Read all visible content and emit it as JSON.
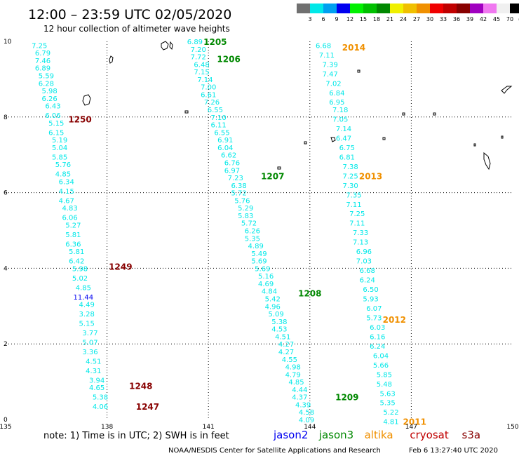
{
  "header": {
    "title": "12:00 – 23:59 UTC 02/05/2020",
    "subtitle": "12 hour collection of altimeter wave heights"
  },
  "colorbar": {
    "unit": "(ft)",
    "colors": [
      "#707070",
      "#00e8e8",
      "#00a0f0",
      "#0000f0",
      "#00f000",
      "#00c000",
      "#008800",
      "#f0f000",
      "#f0c000",
      "#f09000",
      "#f00000",
      "#c00000",
      "#880000",
      "#a000c0",
      "#f078f0",
      "#f0f0f0",
      "#000000"
    ],
    "labels": [
      "3",
      "6",
      "9",
      "12",
      "15",
      "18",
      "21",
      "24",
      "27",
      "30",
      "33",
      "36",
      "39",
      "42",
      "45",
      "70"
    ]
  },
  "footer": {
    "note": "note:  1) Time is in UTC;  2) SWH is in feet",
    "legend": [
      {
        "name": "jason2",
        "color": "#0000f0"
      },
      {
        "name": "jason3",
        "color": "#008800"
      },
      {
        "name": "altika",
        "color": "#f09000"
      },
      {
        "name": "cryosat",
        "color": "#c00000"
      },
      {
        "name": "s3a",
        "color": "#880000"
      }
    ],
    "credit": "NOAA/NESDIS Center for Satellite Applications and Research",
    "timestamp": "Feb  6 13:27:40 UTC 2020"
  },
  "chart_data": {
    "type": "scatter",
    "title": "12:00 – 23:59 UTC 02/05/2020",
    "subtitle": "12 hour collection of altimeter wave heights",
    "xlim": [
      135,
      150
    ],
    "ylim": [
      0,
      10
    ],
    "x_ticks": [
      "135",
      "138",
      "141",
      "144",
      "147",
      "150"
    ],
    "y_ticks": [
      "0",
      "2",
      "4",
      "6",
      "8",
      "10"
    ],
    "grid": true,
    "unit": "ft",
    "tracks": [
      {
        "satellite": "cryosat",
        "color": "#00e8e8",
        "points": [
          {
            "lon": 136.0,
            "lat": 9.9,
            "v": "7.25"
          },
          {
            "lon": 136.1,
            "lat": 9.7,
            "v": "6.79"
          },
          {
            "lon": 136.1,
            "lat": 9.5,
            "v": "7.46"
          },
          {
            "lon": 136.1,
            "lat": 9.3,
            "v": "6.89"
          },
          {
            "lon": 136.2,
            "lat": 9.1,
            "v": "5.59"
          },
          {
            "lon": 136.2,
            "lat": 8.9,
            "v": "6.28"
          },
          {
            "lon": 136.3,
            "lat": 8.7,
            "v": "5.98"
          },
          {
            "lon": 136.3,
            "lat": 8.5,
            "v": "6.26"
          },
          {
            "lon": 136.4,
            "lat": 8.3,
            "v": "6.43"
          },
          {
            "lon": 136.4,
            "lat": 8.05,
            "v": "6.06"
          },
          {
            "lon": 136.5,
            "lat": 7.85,
            "v": "5.15"
          },
          {
            "lon": 136.5,
            "lat": 7.6,
            "v": "6.15"
          },
          {
            "lon": 136.6,
            "lat": 7.4,
            "v": "5.19"
          },
          {
            "lon": 136.6,
            "lat": 7.2,
            "v": "5.04"
          },
          {
            "lon": 136.6,
            "lat": 6.95,
            "v": "5.85"
          },
          {
            "lon": 136.7,
            "lat": 6.75,
            "v": "5.76"
          },
          {
            "lon": 136.7,
            "lat": 6.5,
            "v": "4.85"
          },
          {
            "lon": 136.8,
            "lat": 6.3,
            "v": "6.34"
          },
          {
            "lon": 136.8,
            "lat": 6.05,
            "v": "4.15"
          },
          {
            "lon": 136.8,
            "lat": 5.8,
            "v": "4.67"
          },
          {
            "lon": 136.9,
            "lat": 5.6,
            "v": "4.83"
          },
          {
            "lon": 136.9,
            "lat": 5.35,
            "v": "6.06"
          },
          {
            "lon": 137.0,
            "lat": 5.15,
            "v": "5.27"
          },
          {
            "lon": 137.0,
            "lat": 4.9,
            "v": "5.81"
          },
          {
            "lon": 137.0,
            "lat": 4.65,
            "v": "6.36"
          },
          {
            "lon": 137.1,
            "lat": 4.45,
            "v": "5.81"
          },
          {
            "lon": 137.1,
            "lat": 4.2,
            "v": "6.42"
          },
          {
            "lon": 137.2,
            "lat": 4.0,
            "v": "5.98"
          },
          {
            "lon": 137.2,
            "lat": 3.75,
            "v": "5.02"
          },
          {
            "lon": 137.3,
            "lat": 3.5,
            "v": "4.85"
          },
          {
            "lon": 137.3,
            "lat": 3.25,
            "v": "11.44",
            "color": "#0000f0"
          },
          {
            "lon": 137.4,
            "lat": 3.05,
            "v": "4.49"
          },
          {
            "lon": 137.4,
            "lat": 2.8,
            "v": "3.28"
          },
          {
            "lon": 137.4,
            "lat": 2.55,
            "v": "5.15"
          },
          {
            "lon": 137.5,
            "lat": 2.3,
            "v": "3.77"
          },
          {
            "lon": 137.5,
            "lat": 2.05,
            "v": "5.07"
          },
          {
            "lon": 137.5,
            "lat": 1.8,
            "v": "3.36"
          },
          {
            "lon": 137.6,
            "lat": 1.55,
            "v": "4.51"
          },
          {
            "lon": 137.6,
            "lat": 1.3,
            "v": "4.31"
          },
          {
            "lon": 137.7,
            "lat": 1.05,
            "v": "3.94"
          },
          {
            "lon": 137.7,
            "lat": 0.85,
            "v": "4.65"
          },
          {
            "lon": 137.8,
            "lat": 0.6,
            "v": "5.38"
          },
          {
            "lon": 137.8,
            "lat": 0.35,
            "v": "4.06"
          }
        ],
        "times": [
          {
            "lon": 137.2,
            "lat": 7.95,
            "t": "1250",
            "color": "#880000"
          },
          {
            "lon": 138.4,
            "lat": 4.05,
            "t": "1249",
            "color": "#880000"
          },
          {
            "lon": 139.0,
            "lat": 0.9,
            "t": "1248",
            "color": "#880000"
          },
          {
            "lon": 139.2,
            "lat": 0.35,
            "t": "1247",
            "color": "#880000"
          }
        ]
      },
      {
        "satellite": "jason3",
        "color": "#00e8e8",
        "points": [
          {
            "lon": 140.6,
            "lat": 10.0,
            "v": "6.89"
          },
          {
            "lon": 140.7,
            "lat": 9.8,
            "v": "7.20"
          },
          {
            "lon": 140.7,
            "lat": 9.6,
            "v": "7.72"
          },
          {
            "lon": 140.8,
            "lat": 9.4,
            "v": "6.48"
          },
          {
            "lon": 140.8,
            "lat": 9.2,
            "v": "7.15"
          },
          {
            "lon": 140.9,
            "lat": 9.0,
            "v": "7.14"
          },
          {
            "lon": 141.0,
            "lat": 8.8,
            "v": "7.00"
          },
          {
            "lon": 141.0,
            "lat": 8.6,
            "v": "6.61"
          },
          {
            "lon": 141.1,
            "lat": 8.4,
            "v": "7.26"
          },
          {
            "lon": 141.2,
            "lat": 8.2,
            "v": "6.55"
          },
          {
            "lon": 141.3,
            "lat": 8.0,
            "v": "7.10"
          },
          {
            "lon": 141.3,
            "lat": 7.8,
            "v": "6.11"
          },
          {
            "lon": 141.4,
            "lat": 7.6,
            "v": "6.55"
          },
          {
            "lon": 141.5,
            "lat": 7.4,
            "v": "6.91"
          },
          {
            "lon": 141.5,
            "lat": 7.2,
            "v": "6.04"
          },
          {
            "lon": 141.6,
            "lat": 7.0,
            "v": "6.62"
          },
          {
            "lon": 141.7,
            "lat": 6.8,
            "v": "6.76"
          },
          {
            "lon": 141.7,
            "lat": 6.6,
            "v": "6.97"
          },
          {
            "lon": 141.8,
            "lat": 6.4,
            "v": "7.23"
          },
          {
            "lon": 141.9,
            "lat": 6.2,
            "v": "6.38"
          },
          {
            "lon": 141.9,
            "lat": 6.0,
            "v": "5.72"
          },
          {
            "lon": 142.0,
            "lat": 5.8,
            "v": "5.76"
          },
          {
            "lon": 142.1,
            "lat": 5.6,
            "v": "5.29"
          },
          {
            "lon": 142.1,
            "lat": 5.4,
            "v": "5.83"
          },
          {
            "lon": 142.2,
            "lat": 5.2,
            "v": "5.72"
          },
          {
            "lon": 142.3,
            "lat": 5.0,
            "v": "6.26"
          },
          {
            "lon": 142.3,
            "lat": 4.8,
            "v": "5.35"
          },
          {
            "lon": 142.4,
            "lat": 4.6,
            "v": "4.89"
          },
          {
            "lon": 142.5,
            "lat": 4.4,
            "v": "5.49"
          },
          {
            "lon": 142.5,
            "lat": 4.2,
            "v": "5.69"
          },
          {
            "lon": 142.6,
            "lat": 4.0,
            "v": "5.69"
          },
          {
            "lon": 142.7,
            "lat": 3.8,
            "v": "5.16"
          },
          {
            "lon": 142.7,
            "lat": 3.6,
            "v": "4.69"
          },
          {
            "lon": 142.8,
            "lat": 3.4,
            "v": "4.84"
          },
          {
            "lon": 142.9,
            "lat": 3.2,
            "v": "5.42"
          },
          {
            "lon": 142.9,
            "lat": 3.0,
            "v": "4.96"
          },
          {
            "lon": 143.0,
            "lat": 2.8,
            "v": "5.09"
          },
          {
            "lon": 143.1,
            "lat": 2.6,
            "v": "5.38"
          },
          {
            "lon": 143.1,
            "lat": 2.4,
            "v": "4.53"
          },
          {
            "lon": 143.2,
            "lat": 2.2,
            "v": "4.51"
          },
          {
            "lon": 143.3,
            "lat": 2.0,
            "v": "4.27"
          },
          {
            "lon": 143.3,
            "lat": 1.8,
            "v": "4.27"
          },
          {
            "lon": 143.4,
            "lat": 1.6,
            "v": "4.55"
          },
          {
            "lon": 143.5,
            "lat": 1.4,
            "v": "4.98"
          },
          {
            "lon": 143.5,
            "lat": 1.2,
            "v": "4.79"
          },
          {
            "lon": 143.6,
            "lat": 1.0,
            "v": "4.85"
          },
          {
            "lon": 143.7,
            "lat": 0.8,
            "v": "4.44"
          },
          {
            "lon": 143.7,
            "lat": 0.6,
            "v": "4.37"
          },
          {
            "lon": 143.8,
            "lat": 0.4,
            "v": "4.39"
          },
          {
            "lon": 143.9,
            "lat": 0.2,
            "v": "4.58"
          },
          {
            "lon": 143.9,
            "lat": 0.0,
            "v": "4.09"
          }
        ],
        "times": [
          {
            "lon": 141.2,
            "lat": 10.0,
            "t": "1205",
            "color": "#008800"
          },
          {
            "lon": 141.6,
            "lat": 9.55,
            "t": "1206",
            "color": "#008800"
          },
          {
            "lon": 142.9,
            "lat": 6.45,
            "t": "1207",
            "color": "#008800"
          },
          {
            "lon": 144.0,
            "lat": 3.35,
            "t": "1208",
            "color": "#008800"
          },
          {
            "lon": 145.1,
            "lat": 0.6,
            "t": "1209",
            "color": "#008800"
          }
        ]
      },
      {
        "satellite": "altika",
        "color": "#00e8e8",
        "points": [
          {
            "lon": 144.4,
            "lat": 9.9,
            "v": "6.68"
          },
          {
            "lon": 144.5,
            "lat": 9.65,
            "v": "7.11"
          },
          {
            "lon": 144.6,
            "lat": 9.4,
            "v": "7.39"
          },
          {
            "lon": 144.6,
            "lat": 9.15,
            "v": "7.47"
          },
          {
            "lon": 144.7,
            "lat": 8.9,
            "v": "7.02"
          },
          {
            "lon": 144.8,
            "lat": 8.65,
            "v": "6.84"
          },
          {
            "lon": 144.8,
            "lat": 8.4,
            "v": "6.95"
          },
          {
            "lon": 144.9,
            "lat": 8.2,
            "v": "7.18"
          },
          {
            "lon": 144.9,
            "lat": 7.95,
            "v": "7.05"
          },
          {
            "lon": 145.0,
            "lat": 7.7,
            "v": "7.14"
          },
          {
            "lon": 145.0,
            "lat": 7.45,
            "v": "6.47"
          },
          {
            "lon": 145.1,
            "lat": 7.2,
            "v": "6.75"
          },
          {
            "lon": 145.1,
            "lat": 6.95,
            "v": "6.81"
          },
          {
            "lon": 145.2,
            "lat": 6.7,
            "v": "7.38"
          },
          {
            "lon": 145.2,
            "lat": 6.45,
            "v": "7.25"
          },
          {
            "lon": 145.2,
            "lat": 6.2,
            "v": "7.30"
          },
          {
            "lon": 145.3,
            "lat": 5.95,
            "v": "7.35"
          },
          {
            "lon": 145.3,
            "lat": 5.7,
            "v": "7.11"
          },
          {
            "lon": 145.4,
            "lat": 5.45,
            "v": "7.25"
          },
          {
            "lon": 145.4,
            "lat": 5.2,
            "v": "7.11"
          },
          {
            "lon": 145.5,
            "lat": 4.95,
            "v": "7.33"
          },
          {
            "lon": 145.5,
            "lat": 4.7,
            "v": "7.13"
          },
          {
            "lon": 145.6,
            "lat": 4.45,
            "v": "6.96"
          },
          {
            "lon": 145.6,
            "lat": 4.2,
            "v": "7.03"
          },
          {
            "lon": 145.7,
            "lat": 3.95,
            "v": "6.68"
          },
          {
            "lon": 145.7,
            "lat": 3.7,
            "v": "6.24"
          },
          {
            "lon": 145.8,
            "lat": 3.45,
            "v": "6.50"
          },
          {
            "lon": 145.8,
            "lat": 3.2,
            "v": "5.93"
          },
          {
            "lon": 145.9,
            "lat": 2.95,
            "v": "6.07"
          },
          {
            "lon": 145.9,
            "lat": 2.7,
            "v": "5.73"
          },
          {
            "lon": 146.0,
            "lat": 2.45,
            "v": "6.03"
          },
          {
            "lon": 146.0,
            "lat": 2.2,
            "v": "6.16"
          },
          {
            "lon": 146.0,
            "lat": 1.95,
            "v": "6.24"
          },
          {
            "lon": 146.1,
            "lat": 1.7,
            "v": "6.04"
          },
          {
            "lon": 146.1,
            "lat": 1.45,
            "v": "5.66"
          },
          {
            "lon": 146.2,
            "lat": 1.2,
            "v": "5.85"
          },
          {
            "lon": 146.2,
            "lat": 0.95,
            "v": "5.48"
          },
          {
            "lon": 146.3,
            "lat": 0.7,
            "v": "5.63"
          },
          {
            "lon": 146.3,
            "lat": 0.45,
            "v": "5.35"
          },
          {
            "lon": 146.4,
            "lat": 0.2,
            "v": "5.22"
          },
          {
            "lon": 146.4,
            "lat": -0.05,
            "v": "4.81"
          }
        ],
        "times": [
          {
            "lon": 145.3,
            "lat": 9.85,
            "t": "2014",
            "color": "#f09000"
          },
          {
            "lon": 145.8,
            "lat": 6.45,
            "t": "2013",
            "color": "#f09000"
          },
          {
            "lon": 146.5,
            "lat": 2.65,
            "t": "2012",
            "color": "#f09000"
          },
          {
            "lon": 147.1,
            "lat": -0.05,
            "t": "2011",
            "color": "#f09000"
          }
        ]
      }
    ]
  }
}
